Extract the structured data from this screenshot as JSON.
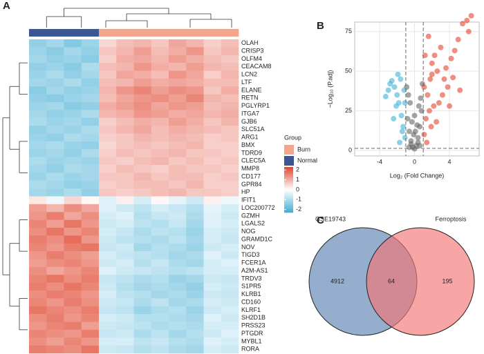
{
  "chart_data": [
    {
      "type": "heatmap",
      "panel": "A",
      "rows": [
        "OLAH",
        "CRISP3",
        "OLFM4",
        "CEACAM8",
        "LCN2",
        "LTF",
        "ELANE",
        "RETN",
        "PGLYRP1",
        "ITGA7",
        "GJB6",
        "SLC51A",
        "ARG1",
        "BMX",
        "TDRD9",
        "CLEC5A",
        "MMP8",
        "CD177",
        "GPR84",
        "HP",
        "IFIT1",
        "LOC200772",
        "GZMH",
        "LGALS2",
        "NOG",
        "GRAMD1C",
        "NOV",
        "TIGD3",
        "FCER1A",
        "A2M-AS1",
        "TRDV3",
        "S1PR5",
        "KLRB1",
        "CD160",
        "KLRF1",
        "SH2D1B",
        "PRSS23",
        "PTGDR",
        "MYBL1",
        "RORA"
      ],
      "annotation": {
        "title": "Group",
        "levels": [
          {
            "name": "Burn",
            "color": "#f2a58d"
          },
          {
            "name": "Normal",
            "color": "#3b5693"
          }
        ],
        "columns": [
          1,
          1,
          1,
          1,
          0,
          0,
          0,
          0,
          0,
          0,
          0,
          0
        ]
      },
      "colors": [
        "#40acd4",
        "#ffffff",
        "#e0452f"
      ],
      "clim": [
        -2.3,
        2.3
      ],
      "colorbar_ticks": [
        2,
        1,
        0,
        -1,
        -2
      ],
      "values": [
        [
          -1.3,
          -1.1,
          -1.5,
          -1.2,
          0.5,
          0.8,
          0.9,
          0.7,
          1.1,
          0.9,
          0.6,
          0.8
        ],
        [
          -1.2,
          -1.4,
          -1.1,
          -1.3,
          0.7,
          0.9,
          1.2,
          0.8,
          1.0,
          1.3,
          0.7,
          0.9
        ],
        [
          -1.1,
          -1.3,
          -1.2,
          -1.4,
          0.6,
          1.0,
          1.1,
          0.9,
          1.2,
          1.0,
          0.8,
          0.7
        ],
        [
          -1.3,
          -1.2,
          -1.4,
          -1.0,
          0.8,
          0.9,
          1.3,
          1.0,
          0.9,
          1.2,
          0.9,
          0.8
        ],
        [
          -1.2,
          -1.0,
          -1.3,
          -1.1,
          0.7,
          1.1,
          1.0,
          0.8,
          1.3,
          1.1,
          0.6,
          0.9
        ],
        [
          -1.1,
          -1.2,
          -1.0,
          -1.3,
          0.8,
          0.9,
          1.2,
          1.0,
          1.1,
          1.0,
          0.8,
          0.8
        ],
        [
          -1.4,
          -1.1,
          -1.3,
          -1.2,
          0.9,
          1.3,
          1.5,
          1.2,
          1.4,
          1.3,
          0.7,
          1.0
        ],
        [
          -1.3,
          -1.4,
          -1.2,
          -1.1,
          0.8,
          1.1,
          1.3,
          1.4,
          1.2,
          1.5,
          0.9,
          0.8
        ],
        [
          -1.2,
          -1.1,
          -1.4,
          -1.3,
          1.0,
          1.2,
          1.4,
          1.1,
          1.3,
          1.2,
          0.8,
          0.9
        ],
        [
          -1.1,
          -1.3,
          -1.2,
          -1.0,
          0.9,
          1.0,
          1.3,
          1.2,
          1.0,
          1.1,
          0.9,
          1.0
        ],
        [
          -1.0,
          -1.2,
          -1.1,
          -1.3,
          0.6,
          0.8,
          1.0,
          0.9,
          1.2,
          1.0,
          0.7,
          0.9
        ],
        [
          -1.3,
          -1.1,
          -1.2,
          -1.0,
          0.7,
          0.9,
          1.1,
          0.8,
          1.0,
          0.9,
          0.8,
          0.7
        ],
        [
          -1.2,
          -1.3,
          -1.0,
          -1.1,
          0.6,
          0.7,
          0.9,
          0.8,
          0.9,
          0.8,
          0.6,
          0.7
        ],
        [
          -1.1,
          -1.0,
          -1.2,
          -1.3,
          0.5,
          0.7,
          0.8,
          0.7,
          0.8,
          0.9,
          0.6,
          0.6
        ],
        [
          -1.2,
          -1.1,
          -1.3,
          -1.0,
          0.6,
          0.8,
          0.7,
          0.8,
          0.9,
          0.7,
          0.7,
          0.6
        ],
        [
          -1.0,
          -1.2,
          -1.1,
          -1.2,
          0.7,
          0.6,
          0.8,
          0.9,
          0.7,
          0.8,
          0.6,
          0.7
        ],
        [
          -1.1,
          -1.3,
          -1.0,
          -1.1,
          0.6,
          0.8,
          0.7,
          0.6,
          0.8,
          0.7,
          0.7,
          0.6
        ],
        [
          -1.2,
          -1.0,
          -1.2,
          -1.1,
          0.7,
          0.7,
          0.9,
          0.7,
          0.8,
          0.8,
          0.6,
          0.7
        ],
        [
          -1.0,
          -1.1,
          -1.3,
          -1.2,
          0.6,
          0.7,
          0.8,
          0.8,
          0.7,
          0.9,
          0.6,
          0.6
        ],
        [
          -1.1,
          -1.2,
          -1.0,
          -1.3,
          0.7,
          0.6,
          0.7,
          0.8,
          0.9,
          0.7,
          0.7,
          0.6
        ],
        [
          0.3,
          -0.2,
          0.5,
          0.1,
          -0.4,
          0.2,
          -0.5,
          0.1,
          -0.3,
          -0.6,
          0.2,
          -0.2
        ],
        [
          1.2,
          0.9,
          1.4,
          1.1,
          -0.4,
          -0.6,
          -0.8,
          -0.5,
          -0.7,
          -0.9,
          -0.3,
          -0.5
        ],
        [
          1.3,
          1.6,
          1.1,
          1.4,
          -0.5,
          -0.4,
          -0.9,
          -0.7,
          -0.6,
          -1.0,
          -0.4,
          -0.6
        ],
        [
          1.5,
          1.2,
          1.7,
          1.3,
          -0.6,
          -0.5,
          -0.8,
          -0.9,
          -0.7,
          -1.1,
          -0.4,
          -0.5
        ],
        [
          1.4,
          1.7,
          1.3,
          1.5,
          -0.5,
          -0.7,
          -1.0,
          -0.8,
          -0.9,
          -1.2,
          -0.5,
          -0.6
        ],
        [
          1.6,
          1.4,
          1.8,
          1.3,
          -0.6,
          -0.8,
          -0.9,
          -1.0,
          -0.8,
          -1.1,
          -0.5,
          -0.7
        ],
        [
          1.5,
          1.3,
          1.6,
          1.7,
          -0.7,
          -0.6,
          -1.1,
          -0.9,
          -1.0,
          -1.2,
          -0.6,
          -0.5
        ],
        [
          1.3,
          1.6,
          1.4,
          1.2,
          -0.5,
          -0.7,
          -0.8,
          -0.9,
          -1.1,
          -1.0,
          -0.4,
          -0.6
        ],
        [
          1.2,
          1.4,
          1.5,
          1.3,
          -0.6,
          -0.5,
          -0.9,
          -0.7,
          -1.0,
          -1.1,
          -0.5,
          -0.4
        ],
        [
          1.4,
          1.1,
          1.3,
          1.5,
          -0.4,
          -0.6,
          -0.7,
          -0.8,
          -0.9,
          -0.8,
          -0.5,
          -0.5
        ],
        [
          1.5,
          1.7,
          1.4,
          1.6,
          -0.7,
          -0.8,
          -1.0,
          -0.9,
          -1.2,
          -1.1,
          -0.6,
          -0.7
        ],
        [
          1.6,
          1.4,
          1.7,
          1.5,
          -0.6,
          -0.9,
          -1.1,
          -1.0,
          -1.1,
          -1.3,
          -0.5,
          -0.6
        ],
        [
          1.4,
          1.6,
          1.5,
          1.3,
          -0.5,
          -0.8,
          -0.9,
          -1.1,
          -1.0,
          -1.2,
          -0.6,
          -0.7
        ],
        [
          1.5,
          1.3,
          1.6,
          1.4,
          -0.6,
          -0.7,
          -1.0,
          -0.8,
          -1.1,
          -1.0,
          -0.5,
          -0.6
        ],
        [
          1.7,
          1.5,
          1.4,
          1.6,
          -0.7,
          -0.8,
          -1.2,
          -1.0,
          -0.9,
          -1.2,
          -0.6,
          -0.5
        ],
        [
          1.4,
          1.6,
          1.3,
          1.5,
          -0.5,
          -0.6,
          -0.9,
          -0.9,
          -1.0,
          -1.1,
          -0.4,
          -0.6
        ],
        [
          1.3,
          1.5,
          1.6,
          1.2,
          -0.6,
          -0.7,
          -0.8,
          -1.0,
          -0.9,
          -1.0,
          -0.5,
          -0.5
        ],
        [
          1.5,
          1.4,
          1.3,
          1.6,
          -0.7,
          -0.6,
          -1.0,
          -0.8,
          -1.1,
          -0.9,
          -0.6,
          -0.4
        ],
        [
          1.4,
          1.2,
          1.5,
          1.3,
          -0.5,
          -0.5,
          -0.8,
          -0.7,
          -0.9,
          -1.0,
          -0.4,
          -0.5
        ],
        [
          1.6,
          1.5,
          1.4,
          1.7,
          -0.6,
          -0.7,
          -0.9,
          -0.8,
          -1.0,
          -1.1,
          -0.5,
          -0.6
        ]
      ]
    },
    {
      "type": "scatter",
      "panel": "B",
      "x_label": "Log₂ (Fold Change)",
      "y_label": "−Log₁₀ (P.adj)",
      "xlim": [
        -6.85,
        7.4
      ],
      "ylim": [
        -3.5,
        81
      ],
      "xticks": [
        -4,
        0,
        4
      ],
      "yticks": [
        0,
        25,
        50,
        75
      ],
      "grid": true,
      "vlines": [
        -1,
        1
      ],
      "hline": 1.3,
      "series": [
        {
          "color": "#666666",
          "x": [
            -0.8,
            -0.6,
            -0.4,
            -0.2,
            0,
            0.2,
            0.4,
            0.6,
            0.8,
            -0.5,
            0.5,
            -0.3,
            0.3,
            -0.7,
            0.7,
            -0.1,
            0.1,
            -0.9,
            0.9,
            -0.4,
            0.4,
            0,
            -0.6,
            0.6
          ],
          "y": [
            20,
            12,
            6,
            2,
            1,
            3,
            8,
            15,
            25,
            30,
            28,
            18,
            16,
            35,
            33,
            10,
            12,
            40,
            42,
            4,
            5,
            22,
            2,
            3
          ]
        },
        {
          "color": "#3fb2d6",
          "x": [
            -1.1,
            -1.3,
            -1.5,
            -1.8,
            -2.0,
            -2.3,
            -2.6,
            -3.0,
            -3.3,
            -1.2,
            -1.6,
            -2.1,
            -1.4,
            -2.8,
            -1.9,
            -1.1,
            -2.4,
            -1.7
          ],
          "y": [
            8,
            15,
            22,
            30,
            35,
            40,
            44,
            38,
            34,
            38,
            45,
            28,
            12,
            42,
            48,
            30,
            20,
            5
          ]
        },
        {
          "color": "#e4432f",
          "x": [
            1.1,
            1.3,
            1.5,
            1.8,
            2.0,
            2.3,
            2.6,
            3.0,
            3.4,
            3.8,
            4.2,
            4.6,
            5.0,
            5.5,
            6.0,
            6.5,
            1.2,
            1.6,
            2.2,
            2.8,
            3.2,
            4.0,
            1.4,
            1.9,
            2.5,
            3.6,
            4.4,
            5.2,
            1.1,
            2.0,
            6.2,
            1.7
          ],
          "y": [
            10,
            20,
            35,
            45,
            55,
            60,
            50,
            65,
            45,
            40,
            58,
            63,
            70,
            80,
            82,
            85,
            60,
            72,
            28,
            30,
            35,
            28,
            5,
            15,
            18,
            52,
            46,
            38,
            40,
            48,
            75,
            25
          ]
        }
      ]
    },
    {
      "type": "venn",
      "panel": "C",
      "sets": [
        {
          "name": "GSE19743",
          "color": "#5d83b4",
          "count": 4912
        },
        {
          "name": "Ferroptosis",
          "color": "#f27474",
          "count": 195
        }
      ],
      "overlap": 64
    }
  ]
}
